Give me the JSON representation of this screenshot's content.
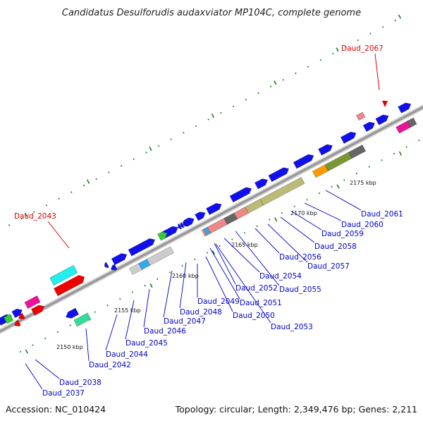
{
  "title": "Candidatus Desulforudis audaxviator MP104C, complete genome",
  "footer": {
    "accession": "Accession: NC_010424",
    "summary": "Topology: circular; Length: 2,349,476 bp; Genes: 2,211"
  },
  "colors": {
    "label_blue": "#0000cc",
    "highlight_red": "#dd0000",
    "backbone": "#999999",
    "tick_green": "#1a7a1a",
    "gene_blue": "#1010ee",
    "cyan": "#22eeee",
    "red": "#ee0000",
    "pink": "#ee1199",
    "green": "#33cc33",
    "sea_green": "#33dd99",
    "light_gray": "#cccccc",
    "sky": "#33aaee",
    "salmon": "#ee8888",
    "dark_gray": "#666666",
    "olive_light": "#bbbb77",
    "olive_dark": "#779933",
    "orange": "#ff9900"
  },
  "scale_labels": [
    "2150 kbp",
    "2155 kbp",
    "2160 kbp",
    "2165 kbp",
    "2170 kbp",
    "2175 kbp"
  ],
  "highlighted_genes": [
    "Daud_2043",
    "Daud_2067"
  ],
  "gene_labels": [
    "Daud_2037",
    "Daud_2038",
    "Daud_2042",
    "Daud_2044",
    "Daud_2045",
    "Daud_2046",
    "Daud_2047",
    "Daud_2048",
    "Daud_2049",
    "Daud_2050",
    "Daud_2051",
    "Daud_2052",
    "Daud_2053",
    "Daud_2054",
    "Daud_2055",
    "Daud_2056",
    "Daud_2057",
    "Daud_2058",
    "Daud_2059",
    "Daud_2060",
    "Daud_2061"
  ]
}
